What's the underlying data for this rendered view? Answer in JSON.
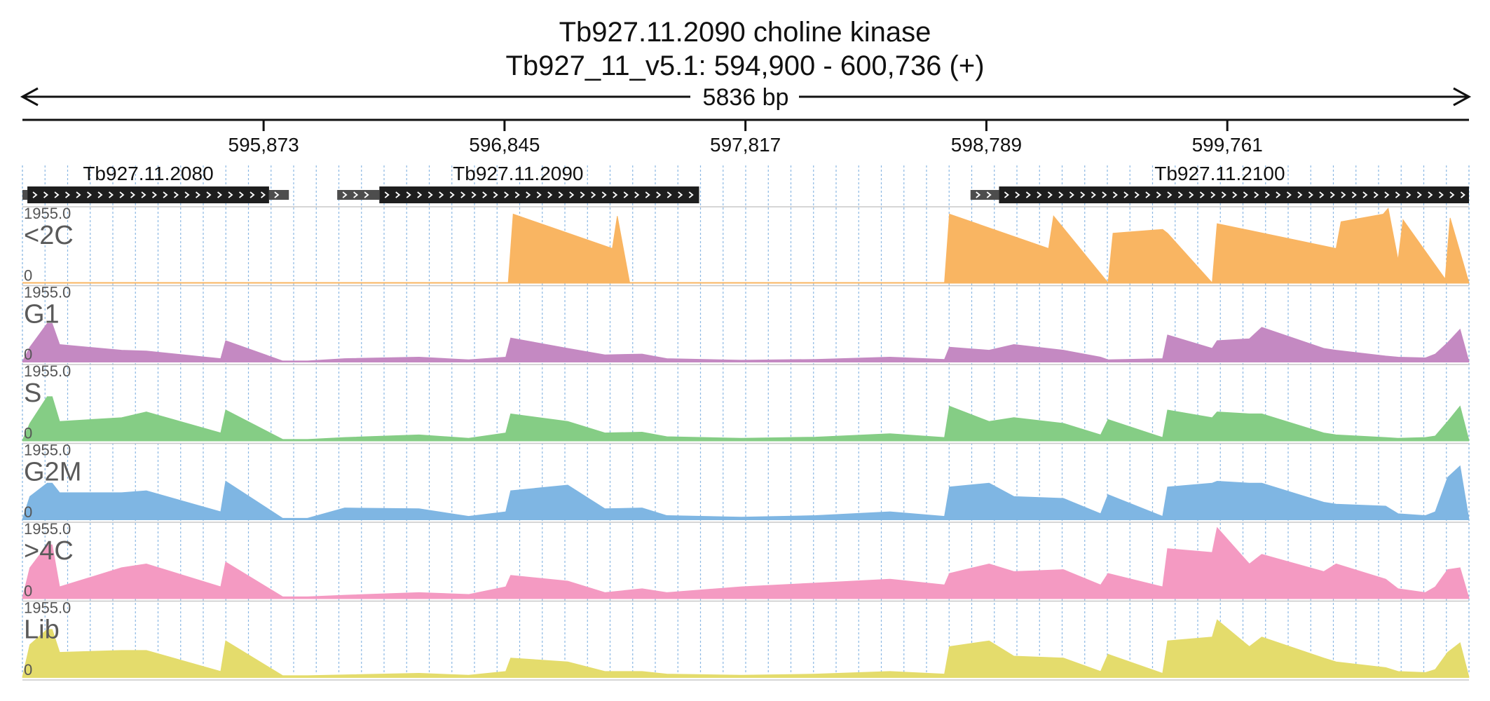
{
  "chart_data": {
    "type": "area",
    "title": "Tb927.11.2090  choline kinase",
    "subtitle": "Tb927_11_v5.1: 594,900 - 600,736 (+)",
    "span_label": "5836 bp",
    "x_range": [
      594900,
      600736
    ],
    "ticks": [
      595873,
      596845,
      597817,
      598789,
      599761
    ],
    "tick_labels": [
      "595,873",
      "596,845",
      "597,817",
      "598,789",
      "599,761"
    ],
    "grid": true,
    "genes": [
      {
        "name": "Tb927.11.2080",
        "utr5": [
          594900,
          594920
        ],
        "cds": [
          594920,
          595895
        ],
        "utr3": [
          595895,
          595975
        ],
        "strand": "+"
      },
      {
        "name": "Tb927.11.2090",
        "utr5": [
          596170,
          596340
        ],
        "cds": [
          596340,
          597630
        ],
        "utr3": null,
        "strand": "+"
      },
      {
        "name": "Tb927.11.2100",
        "utr5": [
          598725,
          598840
        ],
        "cds": [
          598840,
          600736
        ],
        "utr3": null,
        "strand": "+"
      }
    ],
    "y_range": [
      0,
      1955.0
    ],
    "y_max_label": "1955.0",
    "y_min_label": "0",
    "tracks": [
      {
        "name": "<2C",
        "color": "#f9b562",
        "x": [
          594900,
          596860,
          596880,
          597280,
          597300,
          597350,
          598620,
          598640,
          599040,
          599060,
          599280,
          599300,
          599500,
          599520,
          599700,
          599720,
          600200,
          600220,
          600390,
          600410,
          600450,
          600470,
          600640,
          600660,
          600736
        ],
        "values": [
          0,
          0,
          1800,
          900,
          1750,
          0,
          0,
          1800,
          900,
          1750,
          0,
          1300,
          1400,
          1300,
          0,
          1550,
          900,
          1600,
          1800,
          1950,
          600,
          1650,
          100,
          1700,
          0
        ]
      },
      {
        "name": "G1",
        "color": "#c489c2",
        "x": [
          594900,
          594930,
          595000,
          595020,
          595050,
          595300,
          595400,
          595700,
          595720,
          595950,
          596050,
          596200,
          596500,
          596700,
          596850,
          596870,
          597100,
          597250,
          597400,
          597500,
          597800,
          598100,
          598400,
          598620,
          598640,
          598800,
          598900,
          599100,
          599250,
          599280,
          599500,
          599520,
          599700,
          599720,
          599850,
          599900,
          600150,
          600200,
          600400,
          600450,
          600560,
          600600,
          600650,
          600700,
          600736
        ],
        "values": [
          0,
          380,
          1000,
          1000,
          450,
          300,
          280,
          80,
          550,
          20,
          20,
          80,
          120,
          50,
          120,
          620,
          350,
          180,
          200,
          80,
          40,
          60,
          120,
          60,
          380,
          300,
          450,
          300,
          120,
          50,
          80,
          700,
          350,
          550,
          600,
          900,
          350,
          300,
          150,
          120,
          100,
          200,
          500,
          850,
          0
        ]
      },
      {
        "name": "S",
        "color": "#85cd85",
        "x": [
          594900,
          594930,
          595000,
          595020,
          595050,
          595300,
          595400,
          595700,
          595720,
          595950,
          596050,
          596200,
          596500,
          596700,
          596850,
          596870,
          597100,
          597250,
          597400,
          597500,
          597800,
          598100,
          598400,
          598620,
          598640,
          598800,
          598900,
          599100,
          599250,
          599280,
          599500,
          599520,
          599700,
          599720,
          599850,
          599900,
          600150,
          600200,
          600400,
          600450,
          600560,
          600600,
          600650,
          600700,
          600736
        ],
        "values": [
          0,
          450,
          1150,
          1150,
          500,
          600,
          750,
          200,
          800,
          30,
          30,
          80,
          150,
          60,
          200,
          700,
          500,
          200,
          220,
          100,
          60,
          90,
          180,
          80,
          900,
          500,
          600,
          450,
          150,
          550,
          80,
          800,
          600,
          750,
          700,
          700,
          200,
          150,
          80,
          60,
          80,
          120,
          500,
          900,
          0
        ]
      },
      {
        "name": "G2M",
        "color": "#7fb6e3",
        "x": [
          594900,
          594930,
          595000,
          595020,
          595050,
          595300,
          595400,
          595700,
          595720,
          595950,
          596050,
          596200,
          596500,
          596700,
          596850,
          596870,
          597100,
          597250,
          597400,
          597500,
          597800,
          598100,
          598400,
          598620,
          598640,
          598800,
          598900,
          599100,
          599250,
          599280,
          599500,
          599520,
          599700,
          599720,
          599850,
          599900,
          600150,
          600200,
          600400,
          600450,
          600560,
          600600,
          600650,
          600700,
          600736
        ],
        "values": [
          0,
          600,
          950,
          950,
          700,
          700,
          750,
          200,
          1000,
          30,
          30,
          300,
          280,
          80,
          200,
          750,
          900,
          280,
          300,
          100,
          60,
          100,
          200,
          80,
          850,
          950,
          600,
          550,
          150,
          650,
          80,
          850,
          950,
          1000,
          950,
          950,
          450,
          400,
          350,
          150,
          100,
          200,
          1100,
          1400,
          0
        ]
      },
      {
        "name": ">4C",
        "color": "#f49ac2",
        "x": [
          594900,
          594930,
          595000,
          595020,
          595050,
          595300,
          595400,
          595700,
          595720,
          595950,
          596050,
          596200,
          596500,
          596700,
          596850,
          596870,
          597100,
          597250,
          597400,
          597500,
          597800,
          598100,
          598400,
          598620,
          598640,
          598800,
          598900,
          599100,
          599250,
          599280,
          599500,
          599520,
          599700,
          599720,
          599850,
          599900,
          600150,
          600200,
          600400,
          600450,
          600560,
          600600,
          600650,
          600700,
          600736
        ],
        "values": [
          0,
          800,
          1400,
          1400,
          300,
          800,
          900,
          300,
          950,
          40,
          40,
          80,
          150,
          100,
          300,
          600,
          450,
          150,
          250,
          150,
          300,
          400,
          500,
          350,
          650,
          900,
          700,
          750,
          350,
          650,
          300,
          1300,
          1200,
          1850,
          900,
          1150,
          700,
          900,
          500,
          250,
          150,
          300,
          750,
          800,
          0
        ]
      },
      {
        "name": "Lib",
        "color": "#e4dc6c",
        "x": [
          594900,
          594930,
          595000,
          595020,
          595050,
          595300,
          595400,
          595700,
          595720,
          595950,
          596050,
          596200,
          596500,
          596700,
          596850,
          596870,
          597100,
          597250,
          597400,
          597500,
          597800,
          598100,
          598400,
          598620,
          598640,
          598800,
          598900,
          599100,
          599250,
          599280,
          599500,
          599520,
          599700,
          599720,
          599850,
          599900,
          600150,
          600200,
          600400,
          600450,
          600560,
          600600,
          600650,
          600700,
          600736
        ],
        "values": [
          0,
          850,
          1250,
          1250,
          650,
          700,
          700,
          150,
          950,
          40,
          40,
          60,
          100,
          50,
          150,
          500,
          400,
          150,
          150,
          80,
          50,
          80,
          150,
          80,
          800,
          950,
          550,
          500,
          150,
          600,
          100,
          950,
          1050,
          1500,
          800,
          1050,
          500,
          400,
          250,
          150,
          120,
          200,
          650,
          900,
          0
        ]
      }
    ]
  }
}
